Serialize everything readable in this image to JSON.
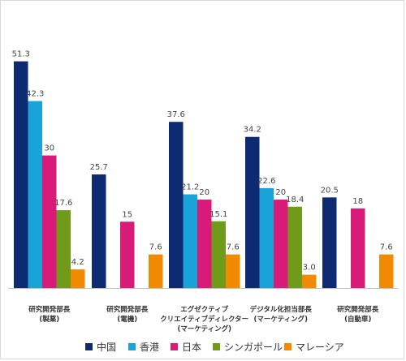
{
  "chart_data": {
    "type": "bar",
    "categories": [
      [
        "研究開発部長",
        "(製薬)"
      ],
      [
        "研究開発部長",
        "(電機)"
      ],
      [
        "エグゼクティブ",
        "クリエイティブディレクター",
        "(マーケティング)"
      ],
      [
        "デジタル化担当部長",
        "(マーケティング)"
      ],
      [
        "研究開発部長",
        "(自動車)"
      ]
    ],
    "series": [
      {
        "name": "中国",
        "color": "#0e2a72",
        "values": [
          51.3,
          25.7,
          37.6,
          34.2,
          20.5
        ],
        "labels": [
          "51.3",
          "25.7",
          "37.6",
          "34.2",
          "20.5"
        ]
      },
      {
        "name": "香港",
        "color": "#1aa3d9",
        "values": [
          42.3,
          null,
          21.2,
          22.6,
          null
        ],
        "labels": [
          "42.3",
          "",
          "21.2",
          "22.6",
          ""
        ]
      },
      {
        "name": "日本",
        "color": "#d81b79",
        "values": [
          30,
          15,
          20,
          20,
          18
        ],
        "labels": [
          "30",
          "15",
          "20",
          "20",
          "18"
        ]
      },
      {
        "name": "シンガポール",
        "color": "#6f9a1a",
        "values": [
          17.6,
          null,
          15.1,
          18.4,
          null
        ],
        "labels": [
          "17.6",
          "",
          "15.1",
          "18.4",
          ""
        ]
      },
      {
        "name": "マレーシア",
        "color": "#f08a00",
        "values": [
          4.2,
          7.6,
          7.6,
          3.0,
          7.6
        ],
        "labels": [
          "4.2",
          "7.6",
          "7.6",
          "3.0",
          "7.6"
        ]
      }
    ],
    "ylim": [
      0,
      56
    ],
    "grid": false,
    "legend": "bottom"
  }
}
